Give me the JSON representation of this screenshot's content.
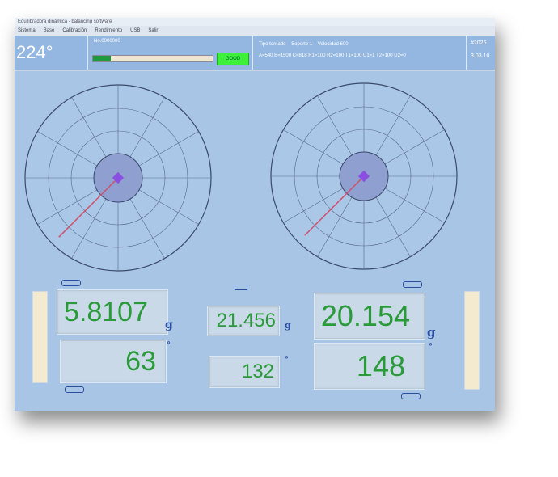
{
  "window": {
    "title": "Equilibradora dinámica - balancing software"
  },
  "menu": [
    "Sistema",
    "Base",
    "Calibración",
    "Rendimiento",
    "USB",
    "Salir"
  ],
  "header": {
    "angle": "224°",
    "serial": "No.0000000",
    "progress": 0.15,
    "status": "GOOD",
    "rotor_type": "Tipo tornado",
    "support": "Soporte 1",
    "speed": "Velocidad 600",
    "dims": "A=540 B=1500 C=818 R1=100 R2=100 T1=100 U1=1 T2=100 U2=0",
    "date": "#2026",
    "time": "3.03 10"
  },
  "plots": [
    {
      "angle_deg": 225
    },
    {
      "angle_deg": 225
    }
  ],
  "left": {
    "weight": "5.8107",
    "angle": "63",
    "weight_unit": "g",
    "angle_unit": "°"
  },
  "center": {
    "weight": "21.456",
    "angle": "132",
    "weight_unit": "g",
    "angle_unit": "°"
  },
  "right": {
    "weight": "20.154",
    "angle": "148",
    "weight_unit": "g",
    "angle_unit": "°"
  },
  "colors": {
    "value": "#2a9a3a",
    "unit": "#2b4fa0",
    "good": "#3ef03a",
    "progress": "#1e9a3a"
  }
}
